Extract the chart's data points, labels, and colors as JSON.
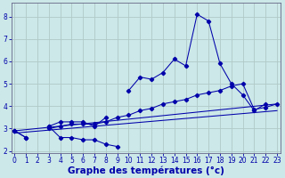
{
  "xlabel": "Graphe des températures (°c)",
  "background_color": "#cce8e8",
  "grid_color": "#b0c8c8",
  "line_color": "#0000aa",
  "x_values": [
    0,
    1,
    2,
    3,
    4,
    5,
    6,
    7,
    8,
    9,
    10,
    11,
    12,
    13,
    14,
    15,
    16,
    17,
    18,
    19,
    20,
    21,
    22,
    23
  ],
  "series_top": [
    2.9,
    null,
    null,
    3.1,
    3.3,
    3.3,
    3.3,
    3.1,
    3.5,
    null,
    4.7,
    5.3,
    5.2,
    5.5,
    6.1,
    5.8,
    8.1,
    7.8,
    5.9,
    5.0,
    4.5,
    3.8,
    4.1,
    null
  ],
  "series_mid": [
    2.9,
    2.6,
    null,
    3.0,
    3.1,
    3.2,
    3.2,
    3.2,
    3.3,
    3.5,
    3.6,
    3.8,
    3.9,
    4.1,
    4.2,
    4.3,
    4.5,
    4.6,
    4.7,
    4.9,
    5.0,
    3.85,
    3.95,
    4.1
  ],
  "series_bot": [
    2.9,
    2.6,
    null,
    3.1,
    2.6,
    2.6,
    2.5,
    2.5,
    2.3,
    2.2,
    null,
    null,
    null,
    null,
    null,
    null,
    null,
    null,
    null,
    null,
    null,
    null,
    null,
    null
  ],
  "trend1": [
    2.9,
    4.1
  ],
  "trend1_x": [
    0,
    23
  ],
  "trend2": [
    2.8,
    3.8
  ],
  "trend2_x": [
    0,
    23
  ],
  "ylim": [
    1.9,
    8.6
  ],
  "xlim": [
    -0.3,
    23.3
  ],
  "yticks": [
    2,
    3,
    4,
    5,
    6,
    7,
    8
  ],
  "xticks": [
    0,
    1,
    2,
    3,
    4,
    5,
    6,
    7,
    8,
    9,
    10,
    11,
    12,
    13,
    14,
    15,
    16,
    17,
    18,
    19,
    20,
    21,
    22,
    23
  ],
  "tick_fontsize": 5.5,
  "ylabel_fontsize": 5.5,
  "xlabel_fontsize": 7.5
}
